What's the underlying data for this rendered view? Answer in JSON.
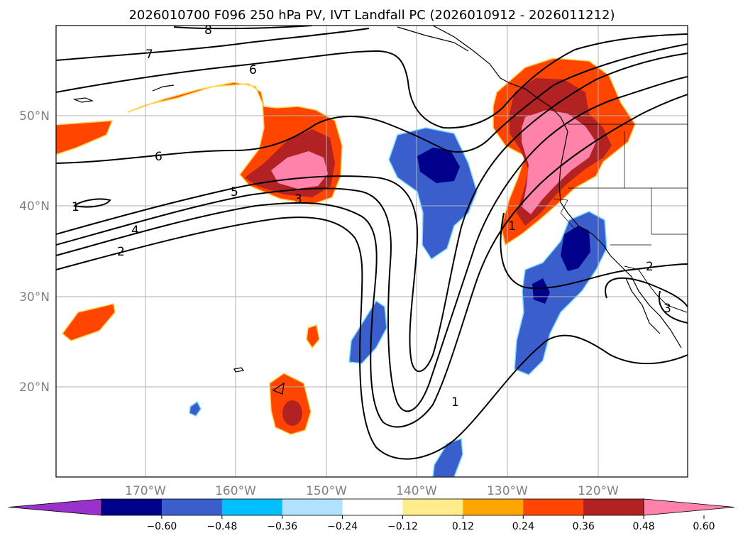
{
  "title": "2026010700 F096 250 hPa PV, IVT Landfall PC (2026010912 - 2026011212)",
  "lon_labels": [
    "170°W",
    "160°W",
    "150°W",
    "140°W",
    "130°W",
    "120°W"
  ],
  "lat_labels": [
    "50°N",
    "40°N",
    "30°N",
    "20°N"
  ],
  "colorbar": {
    "ticks": [
      "−0.60",
      "−0.48",
      "−0.36",
      "−0.24",
      "−0.12",
      "0.12",
      "0.24",
      "0.36",
      "0.48",
      "0.60"
    ],
    "colors": [
      "#9932cc",
      "#00008b",
      "#3a5fcd",
      "#00bfff",
      "#b0e2ff",
      "#ffffff",
      "#ffec8b",
      "#ffa500",
      "#ff4500",
      "#b22222",
      "#ff82ab"
    ]
  },
  "contour_labels": [
    "8",
    "7",
    "6",
    "6",
    "5",
    "4",
    "3",
    "2",
    "1",
    "1",
    "1",
    "2",
    "3"
  ],
  "colors": {
    "neg_strong": "#00008b",
    "neg_mid": "#3a5fcd",
    "neg_weak": "#00bfff",
    "pos_weak": "#ffec8b",
    "pos_mid": "#ffa500",
    "pos_orange": "#ff4500",
    "pos_red": "#b22222",
    "pos_pink": "#ff82ab"
  }
}
